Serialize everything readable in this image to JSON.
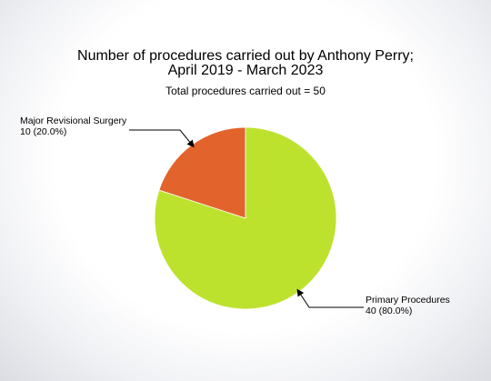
{
  "chart_data": {
    "type": "pie",
    "title_lines": [
      "Number of procedures carried out by Anthony Perry;",
      "April 2019 - March 2023"
    ],
    "subtitle": "Total procedures carried out = 50",
    "slices": [
      {
        "name": "Major Revisional Surgery",
        "value": 10,
        "value_label": "10 (20.0%)",
        "color": "#e2642c"
      },
      {
        "name": "Primary Procedures",
        "value": 40,
        "value_label": "40 (80.0%)",
        "color": "#bde22e"
      }
    ],
    "start_angle": "12 o'clock",
    "direction": "counter-clockwise from top for first slice",
    "legend": "none (callout labels)"
  }
}
